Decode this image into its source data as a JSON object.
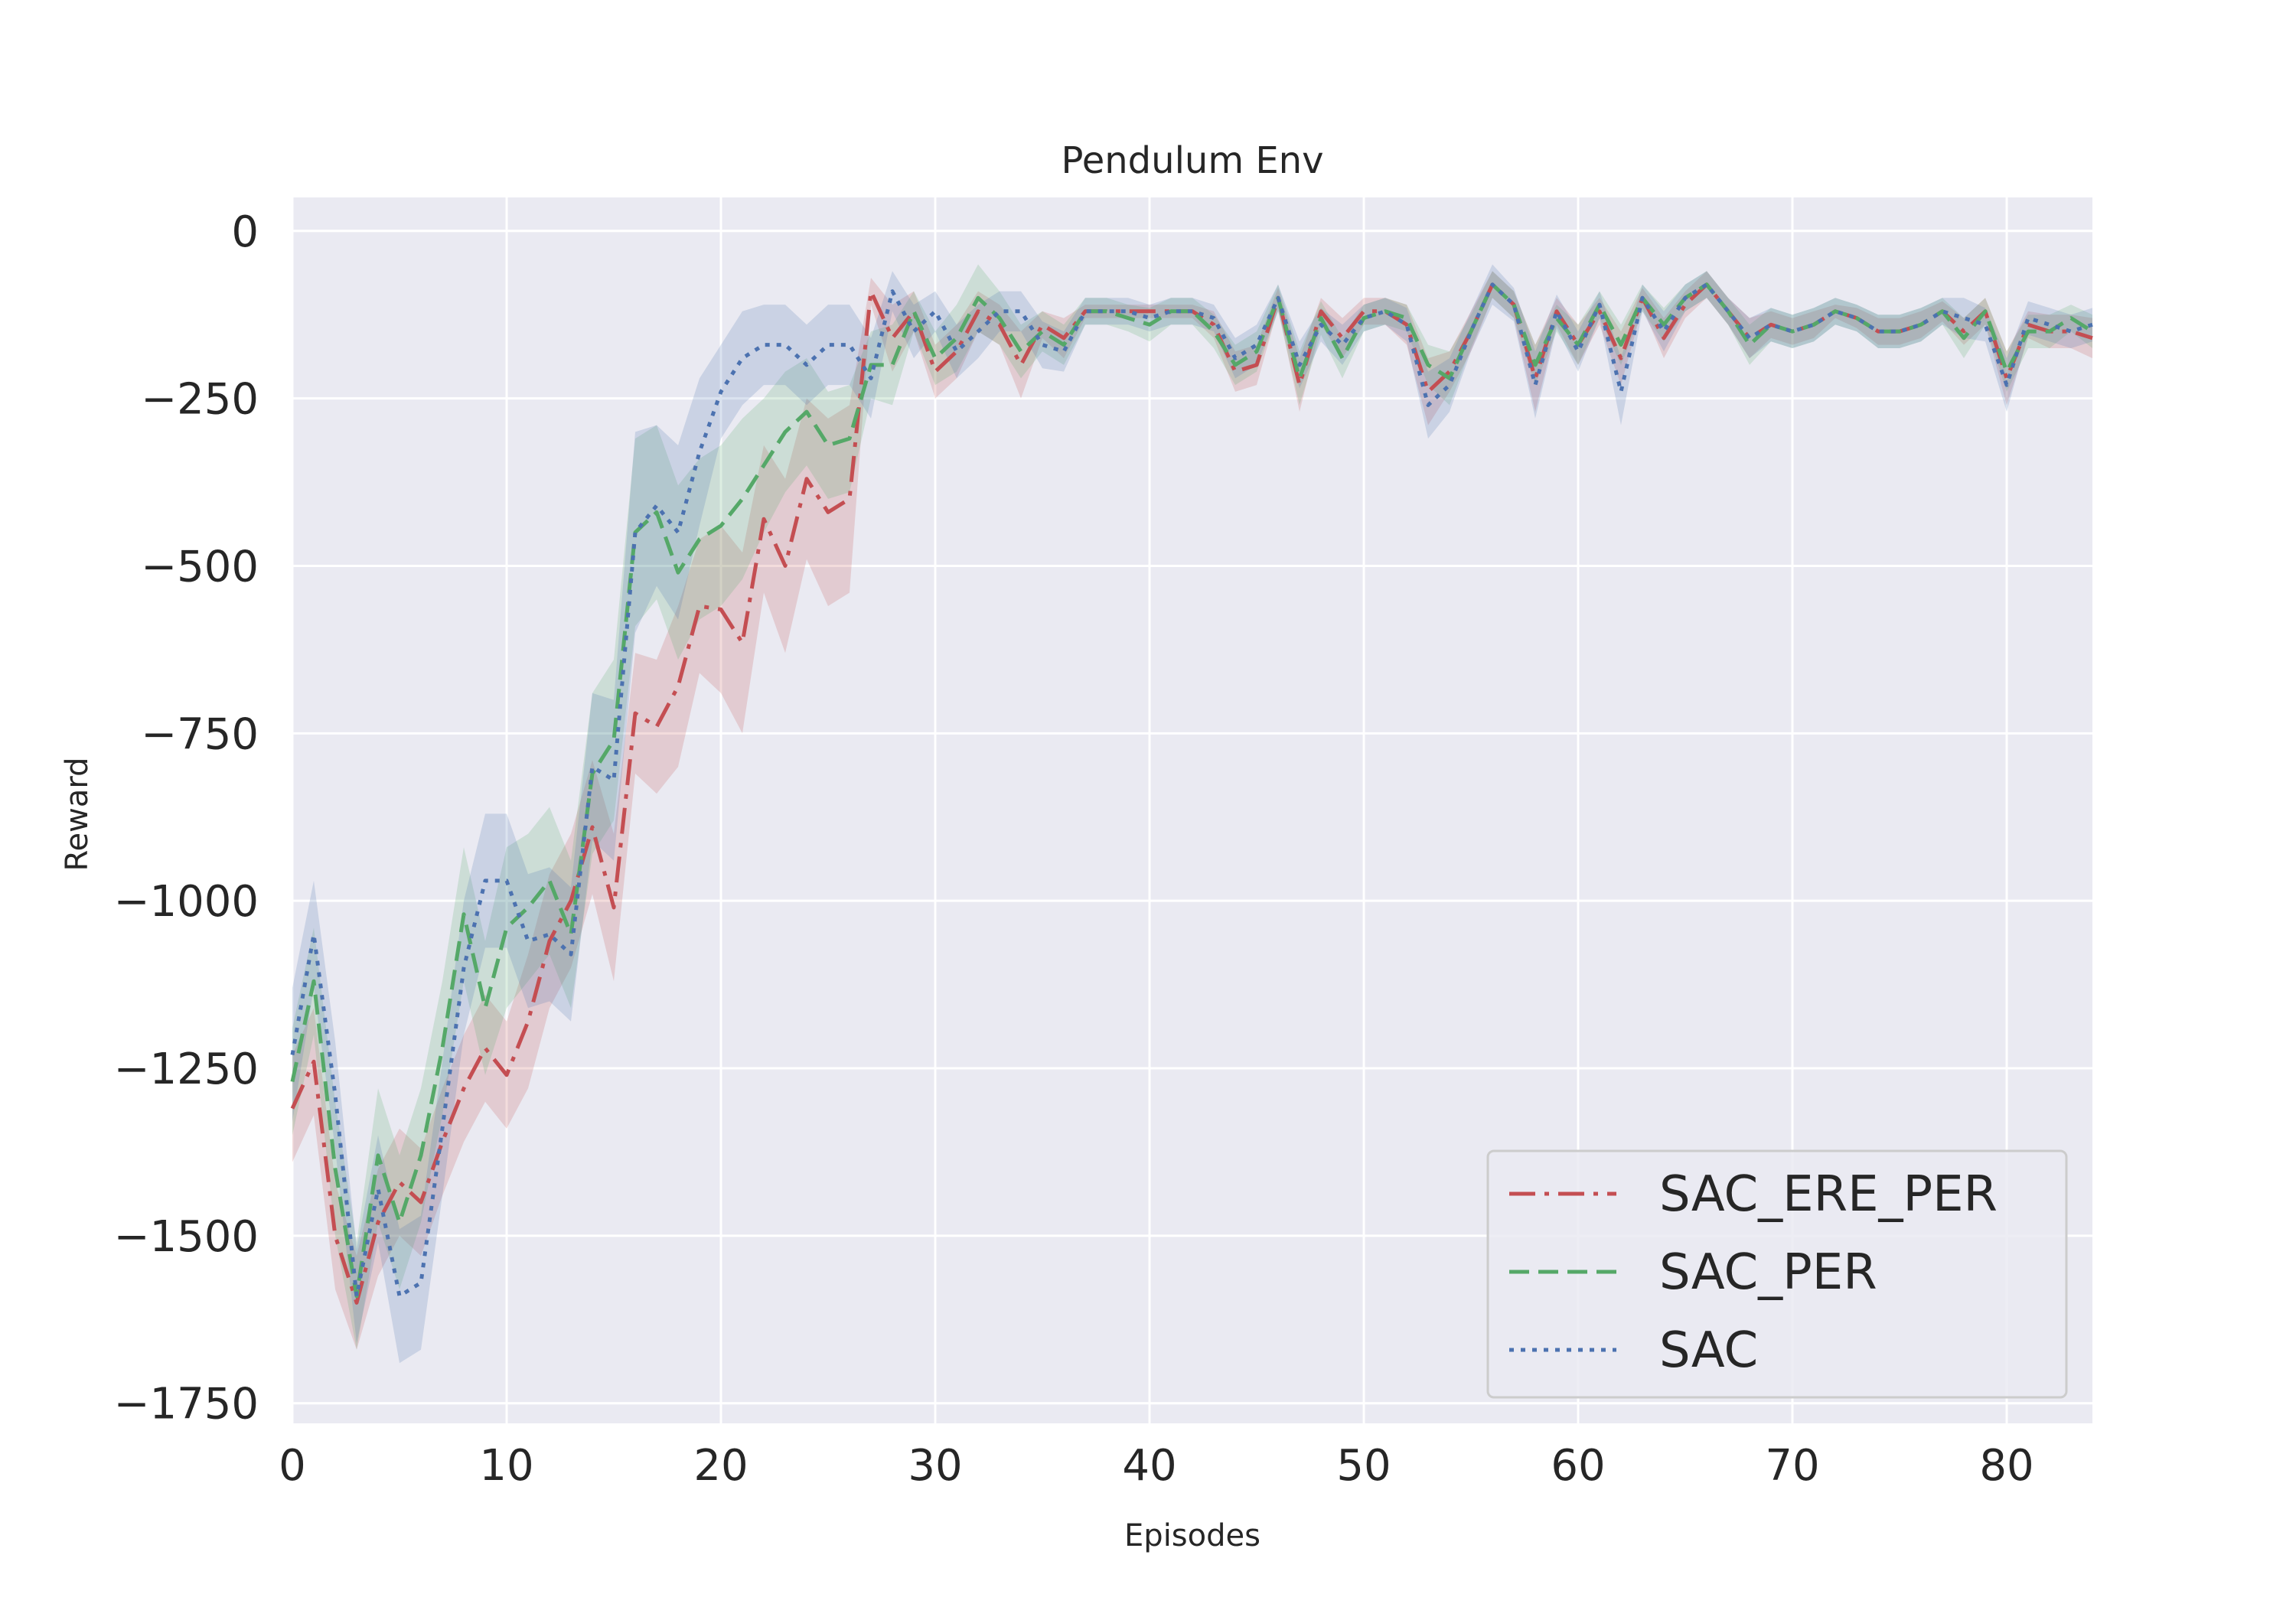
{
  "chart_data": {
    "type": "line",
    "title": "Pendulum Env",
    "xlabel": "Episodes",
    "ylabel": "Reward",
    "xlim": [
      0,
      84
    ],
    "ylim": [
      -1780,
      50
    ],
    "xticks": [
      0,
      10,
      20,
      30,
      40,
      50,
      60,
      70,
      80
    ],
    "xtick_labels": [
      "0",
      "10",
      "20",
      "30",
      "40",
      "50",
      "60",
      "70",
      "80"
    ],
    "yticks": [
      0,
      -250,
      -500,
      -750,
      -1000,
      -1250,
      -1500,
      -1750
    ],
    "ytick_labels": [
      "0",
      "−250",
      "−500",
      "−750",
      "−1000",
      "−1250",
      "−1500",
      "−1750"
    ],
    "grid": true,
    "legend_position": "lower-right",
    "x": [
      0,
      1,
      2,
      3,
      4,
      5,
      6,
      7,
      8,
      9,
      10,
      11,
      12,
      13,
      14,
      15,
      16,
      17,
      18,
      19,
      20,
      21,
      22,
      23,
      24,
      25,
      26,
      27,
      28,
      29,
      30,
      31,
      32,
      33,
      34,
      35,
      36,
      37,
      38,
      39,
      40,
      41,
      42,
      43,
      44,
      45,
      46,
      47,
      48,
      49,
      50,
      51,
      52,
      53,
      54,
      55,
      56,
      57,
      58,
      59,
      60,
      61,
      62,
      63,
      64,
      65,
      66,
      67,
      68,
      69,
      70,
      71,
      72,
      73,
      74,
      75,
      76,
      77,
      78,
      79,
      80,
      81,
      82,
      83,
      84
    ],
    "series": [
      {
        "name": "SAC_ERE_PER",
        "color": "#c44e52",
        "dash": "dashdot",
        "values": [
          -1310,
          -1240,
          -1500,
          -1600,
          -1480,
          -1420,
          -1450,
          -1360,
          -1280,
          -1220,
          -1260,
          -1180,
          -1060,
          -1000,
          -890,
          -1010,
          -720,
          -740,
          -680,
          -560,
          -565,
          -615,
          -430,
          -500,
          -370,
          -420,
          -400,
          -90,
          -160,
          -120,
          -210,
          -180,
          -120,
          -140,
          -200,
          -140,
          -160,
          -120,
          -120,
          -120,
          -120,
          -120,
          -120,
          -140,
          -210,
          -200,
          -100,
          -230,
          -120,
          -160,
          -120,
          -120,
          -140,
          -240,
          -210,
          -150,
          -80,
          -110,
          -220,
          -120,
          -170,
          -120,
          -190,
          -100,
          -160,
          -110,
          -80,
          -120,
          -160,
          -140,
          -150,
          -140,
          -120,
          -130,
          -150,
          -150,
          -140,
          -120,
          -150,
          -120,
          -220,
          -140,
          -150,
          -150,
          -160
        ],
        "upper": [
          -1230,
          -1160,
          -1420,
          -1530,
          -1400,
          -1340,
          -1370,
          -1280,
          -1200,
          -1140,
          -1180,
          -1080,
          -960,
          -900,
          -790,
          -900,
          -630,
          -640,
          -560,
          -460,
          -440,
          -480,
          -320,
          -370,
          -250,
          -280,
          -260,
          -70,
          -110,
          -90,
          -170,
          -140,
          -90,
          -110,
          -150,
          -120,
          -130,
          -110,
          -110,
          -110,
          -110,
          -110,
          -110,
          -120,
          -180,
          -170,
          -85,
          -190,
          -100,
          -130,
          -100,
          -100,
          -110,
          -190,
          -180,
          -120,
          -60,
          -90,
          -170,
          -100,
          -140,
          -100,
          -150,
          -85,
          -130,
          -90,
          -60,
          -100,
          -130,
          -120,
          -130,
          -120,
          -110,
          -115,
          -130,
          -130,
          -120,
          -105,
          -130,
          -100,
          -180,
          -120,
          -125,
          -125,
          -130
        ],
        "lower": [
          -1390,
          -1320,
          -1580,
          -1670,
          -1560,
          -1500,
          -1530,
          -1440,
          -1360,
          -1300,
          -1340,
          -1280,
          -1160,
          -1100,
          -990,
          -1120,
          -810,
          -840,
          -800,
          -660,
          -690,
          -750,
          -540,
          -630,
          -490,
          -560,
          -540,
          -110,
          -210,
          -150,
          -250,
          -220,
          -150,
          -170,
          -250,
          -160,
          -190,
          -130,
          -130,
          -130,
          -130,
          -130,
          -130,
          -160,
          -240,
          -230,
          -115,
          -270,
          -140,
          -190,
          -140,
          -140,
          -170,
          -290,
          -240,
          -180,
          -100,
          -130,
          -270,
          -140,
          -200,
          -140,
          -230,
          -115,
          -190,
          -130,
          -100,
          -140,
          -190,
          -160,
          -170,
          -160,
          -130,
          -145,
          -170,
          -170,
          -160,
          -135,
          -170,
          -140,
          -260,
          -160,
          -175,
          -175,
          -190
        ]
      },
      {
        "name": "SAC_PER",
        "color": "#55a868",
        "dash": "dashed",
        "values": [
          -1270,
          -1120,
          -1400,
          -1590,
          -1380,
          -1480,
          -1380,
          -1220,
          -1020,
          -1160,
          -1040,
          -1010,
          -970,
          -1050,
          -810,
          -760,
          -450,
          -420,
          -510,
          -460,
          -440,
          -400,
          -350,
          -300,
          -270,
          -320,
          -310,
          -200,
          -200,
          -120,
          -190,
          -160,
          -100,
          -130,
          -180,
          -150,
          -170,
          -120,
          -120,
          -130,
          -140,
          -120,
          -120,
          -150,
          -200,
          -180,
          -100,
          -220,
          -130,
          -190,
          -130,
          -120,
          -130,
          -200,
          -220,
          -150,
          -80,
          -110,
          -200,
          -130,
          -170,
          -110,
          -170,
          -100,
          -140,
          -100,
          -80,
          -120,
          -170,
          -140,
          -150,
          -140,
          -120,
          -130,
          -150,
          -150,
          -140,
          -120,
          -160,
          -120,
          -210,
          -150,
          -150,
          -130,
          -150
        ],
        "upper": [
          -1190,
          -1040,
          -1300,
          -1510,
          -1280,
          -1380,
          -1280,
          -1120,
          -920,
          -1060,
          -920,
          -900,
          -860,
          -940,
          -690,
          -640,
          -310,
          -290,
          -380,
          -340,
          -320,
          -280,
          -250,
          -210,
          -190,
          -240,
          -230,
          -150,
          -140,
          -90,
          -150,
          -110,
          -50,
          -90,
          -140,
          -120,
          -140,
          -100,
          -100,
          -110,
          -115,
          -100,
          -100,
          -125,
          -170,
          -150,
          -80,
          -180,
          -105,
          -160,
          -110,
          -100,
          -110,
          -170,
          -180,
          -125,
          -60,
          -90,
          -170,
          -110,
          -140,
          -90,
          -140,
          -80,
          -115,
          -80,
          -60,
          -100,
          -140,
          -115,
          -125,
          -115,
          -100,
          -110,
          -125,
          -125,
          -115,
          -100,
          -130,
          -100,
          -180,
          -125,
          -125,
          -110,
          -125
        ],
        "lower": [
          -1350,
          -1200,
          -1500,
          -1670,
          -1480,
          -1580,
          -1480,
          -1320,
          -1120,
          -1260,
          -1160,
          -1120,
          -1080,
          -1160,
          -930,
          -880,
          -590,
          -550,
          -640,
          -580,
          -560,
          -520,
          -450,
          -390,
          -350,
          -400,
          -390,
          -250,
          -260,
          -150,
          -230,
          -210,
          -150,
          -170,
          -220,
          -180,
          -200,
          -140,
          -140,
          -150,
          -165,
          -140,
          -140,
          -175,
          -230,
          -210,
          -120,
          -260,
          -155,
          -220,
          -150,
          -140,
          -150,
          -230,
          -260,
          -175,
          -100,
          -130,
          -230,
          -150,
          -200,
          -130,
          -200,
          -120,
          -165,
          -120,
          -100,
          -140,
          -200,
          -165,
          -175,
          -165,
          -140,
          -150,
          -175,
          -175,
          -165,
          -140,
          -190,
          -140,
          -240,
          -175,
          -175,
          -150,
          -175
        ]
      },
      {
        "name": "SAC",
        "color": "#4c72b0",
        "dash": "dotted",
        "values": [
          -1230,
          -1050,
          -1290,
          -1590,
          -1430,
          -1590,
          -1570,
          -1340,
          -1100,
          -970,
          -970,
          -1060,
          -1050,
          -1080,
          -800,
          -820,
          -450,
          -410,
          -450,
          -330,
          -240,
          -190,
          -170,
          -170,
          -200,
          -170,
          -170,
          -220,
          -90,
          -150,
          -120,
          -180,
          -150,
          -120,
          -120,
          -170,
          -180,
          -120,
          -120,
          -120,
          -130,
          -120,
          -120,
          -130,
          -190,
          -170,
          -100,
          -200,
          -140,
          -170,
          -130,
          -120,
          -140,
          -260,
          -230,
          -150,
          -80,
          -110,
          -230,
          -120,
          -180,
          -110,
          -240,
          -100,
          -150,
          -100,
          -80,
          -120,
          -160,
          -140,
          -150,
          -140,
          -120,
          -130,
          -150,
          -150,
          -140,
          -120,
          -130,
          -140,
          -230,
          -130,
          -140,
          -150,
          -140
        ],
        "upper": [
          -1130,
          -970,
          -1210,
          -1520,
          -1350,
          -1490,
          -1470,
          -1240,
          -1000,
          -870,
          -870,
          -960,
          -950,
          -980,
          -690,
          -700,
          -300,
          -290,
          -320,
          -220,
          -170,
          -120,
          -110,
          -110,
          -140,
          -110,
          -110,
          -160,
          -60,
          -110,
          -90,
          -140,
          -110,
          -90,
          -90,
          -135,
          -150,
          -100,
          -100,
          -100,
          -110,
          -100,
          -100,
          -110,
          -160,
          -140,
          -80,
          -165,
          -115,
          -140,
          -110,
          -100,
          -115,
          -210,
          -190,
          -120,
          -50,
          -85,
          -180,
          -95,
          -150,
          -90,
          -190,
          -80,
          -120,
          -80,
          -60,
          -100,
          -130,
          -115,
          -125,
          -115,
          -100,
          -110,
          -125,
          -125,
          -115,
          -100,
          -100,
          -115,
          -190,
          -105,
          -115,
          -125,
          -115
        ],
        "lower": [
          -1330,
          -1130,
          -1370,
          -1660,
          -1510,
          -1690,
          -1670,
          -1440,
          -1200,
          -1070,
          -1070,
          -1160,
          -1150,
          -1180,
          -910,
          -940,
          -600,
          -530,
          -580,
          -440,
          -310,
          -260,
          -230,
          -230,
          -260,
          -230,
          -230,
          -280,
          -120,
          -190,
          -150,
          -220,
          -190,
          -150,
          -150,
          -205,
          -210,
          -140,
          -140,
          -140,
          -150,
          -140,
          -140,
          -150,
          -220,
          -200,
          -120,
          -235,
          -165,
          -200,
          -150,
          -140,
          -165,
          -310,
          -270,
          -180,
          -110,
          -135,
          -280,
          -145,
          -210,
          -130,
          -290,
          -120,
          -180,
          -120,
          -100,
          -140,
          -190,
          -165,
          -175,
          -165,
          -140,
          -150,
          -175,
          -175,
          -165,
          -140,
          -160,
          -165,
          -270,
          -155,
          -165,
          -175,
          -165
        ]
      }
    ]
  },
  "colors": {
    "plot_background": "#eaeaf2",
    "grid": "#ffffff",
    "text": "#262626",
    "legend_frame": "#cccccc"
  }
}
